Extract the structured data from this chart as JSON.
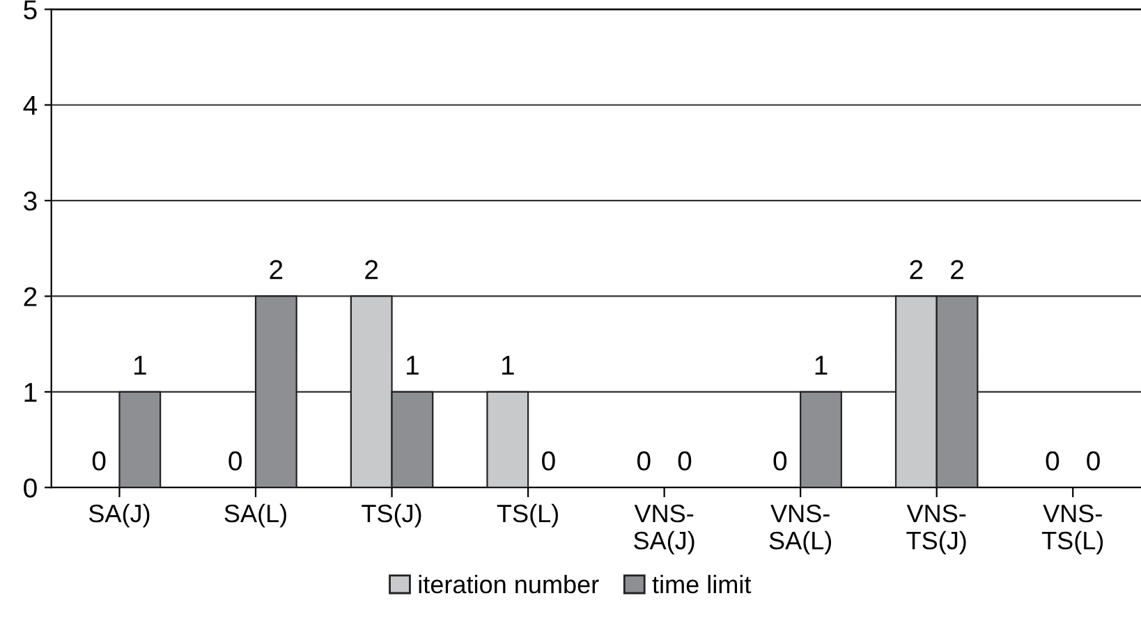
{
  "chart_data": {
    "type": "bar",
    "categories": [
      "SA(J)",
      "SA(L)",
      "TS(J)",
      "TS(L)",
      "VNS-\nSA(J)",
      "VNS-\nSA(L)",
      "VNS-\nTS(J)",
      "VNS-\nTS(L)"
    ],
    "series": [
      {
        "name": "iteration number",
        "color": "#c8c9cb",
        "values": [
          0,
          0,
          2,
          1,
          0,
          0,
          2,
          0
        ]
      },
      {
        "name": "time limit",
        "color": "#8e8f93",
        "values": [
          1,
          2,
          1,
          0,
          0,
          1,
          2,
          0
        ]
      }
    ],
    "ylim": [
      0,
      5
    ],
    "yticks": [
      0,
      1,
      2,
      3,
      4,
      5
    ],
    "grid": "y",
    "legend": "bottom",
    "data_labels": true
  }
}
